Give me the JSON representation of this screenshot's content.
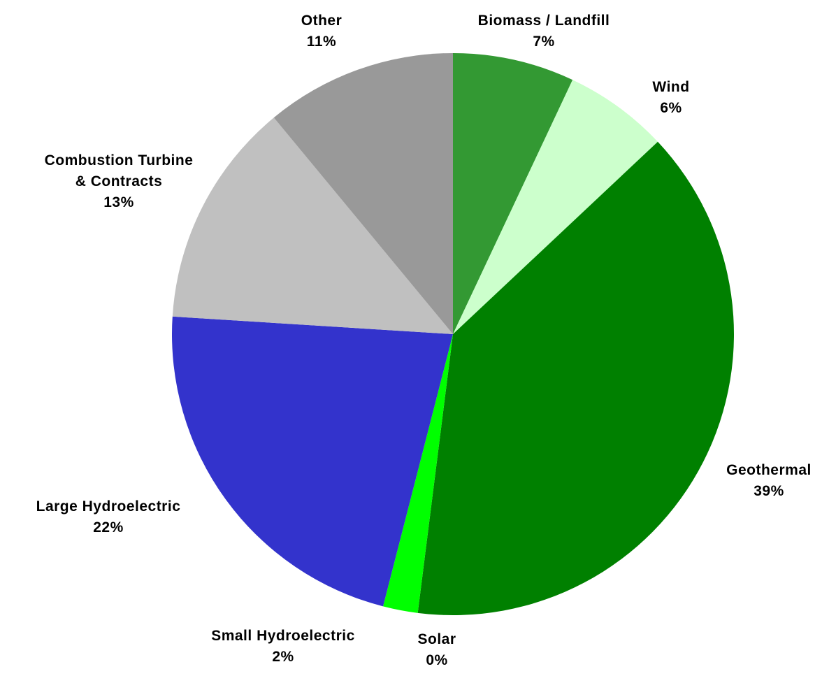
{
  "chart_data": {
    "type": "pie",
    "categories": [
      "Biomass / Landfill",
      "Wind",
      "Geothermal",
      "Solar",
      "Small Hydroelectric",
      "Large Hydroelectric",
      "Combustion Turbine\n& Contracts",
      "Other"
    ],
    "values": [
      7,
      6,
      39,
      0,
      2,
      22,
      13,
      11
    ],
    "value_labels": [
      "7%",
      "6%",
      "39%",
      "0%",
      "2%",
      "22%",
      "13%",
      "11%"
    ],
    "colors": [
      "#339933",
      "#ccffcc",
      "#008000",
      "#ffff66",
      "#00ff00",
      "#3333cc",
      "#c0c0c0",
      "#999999"
    ]
  }
}
